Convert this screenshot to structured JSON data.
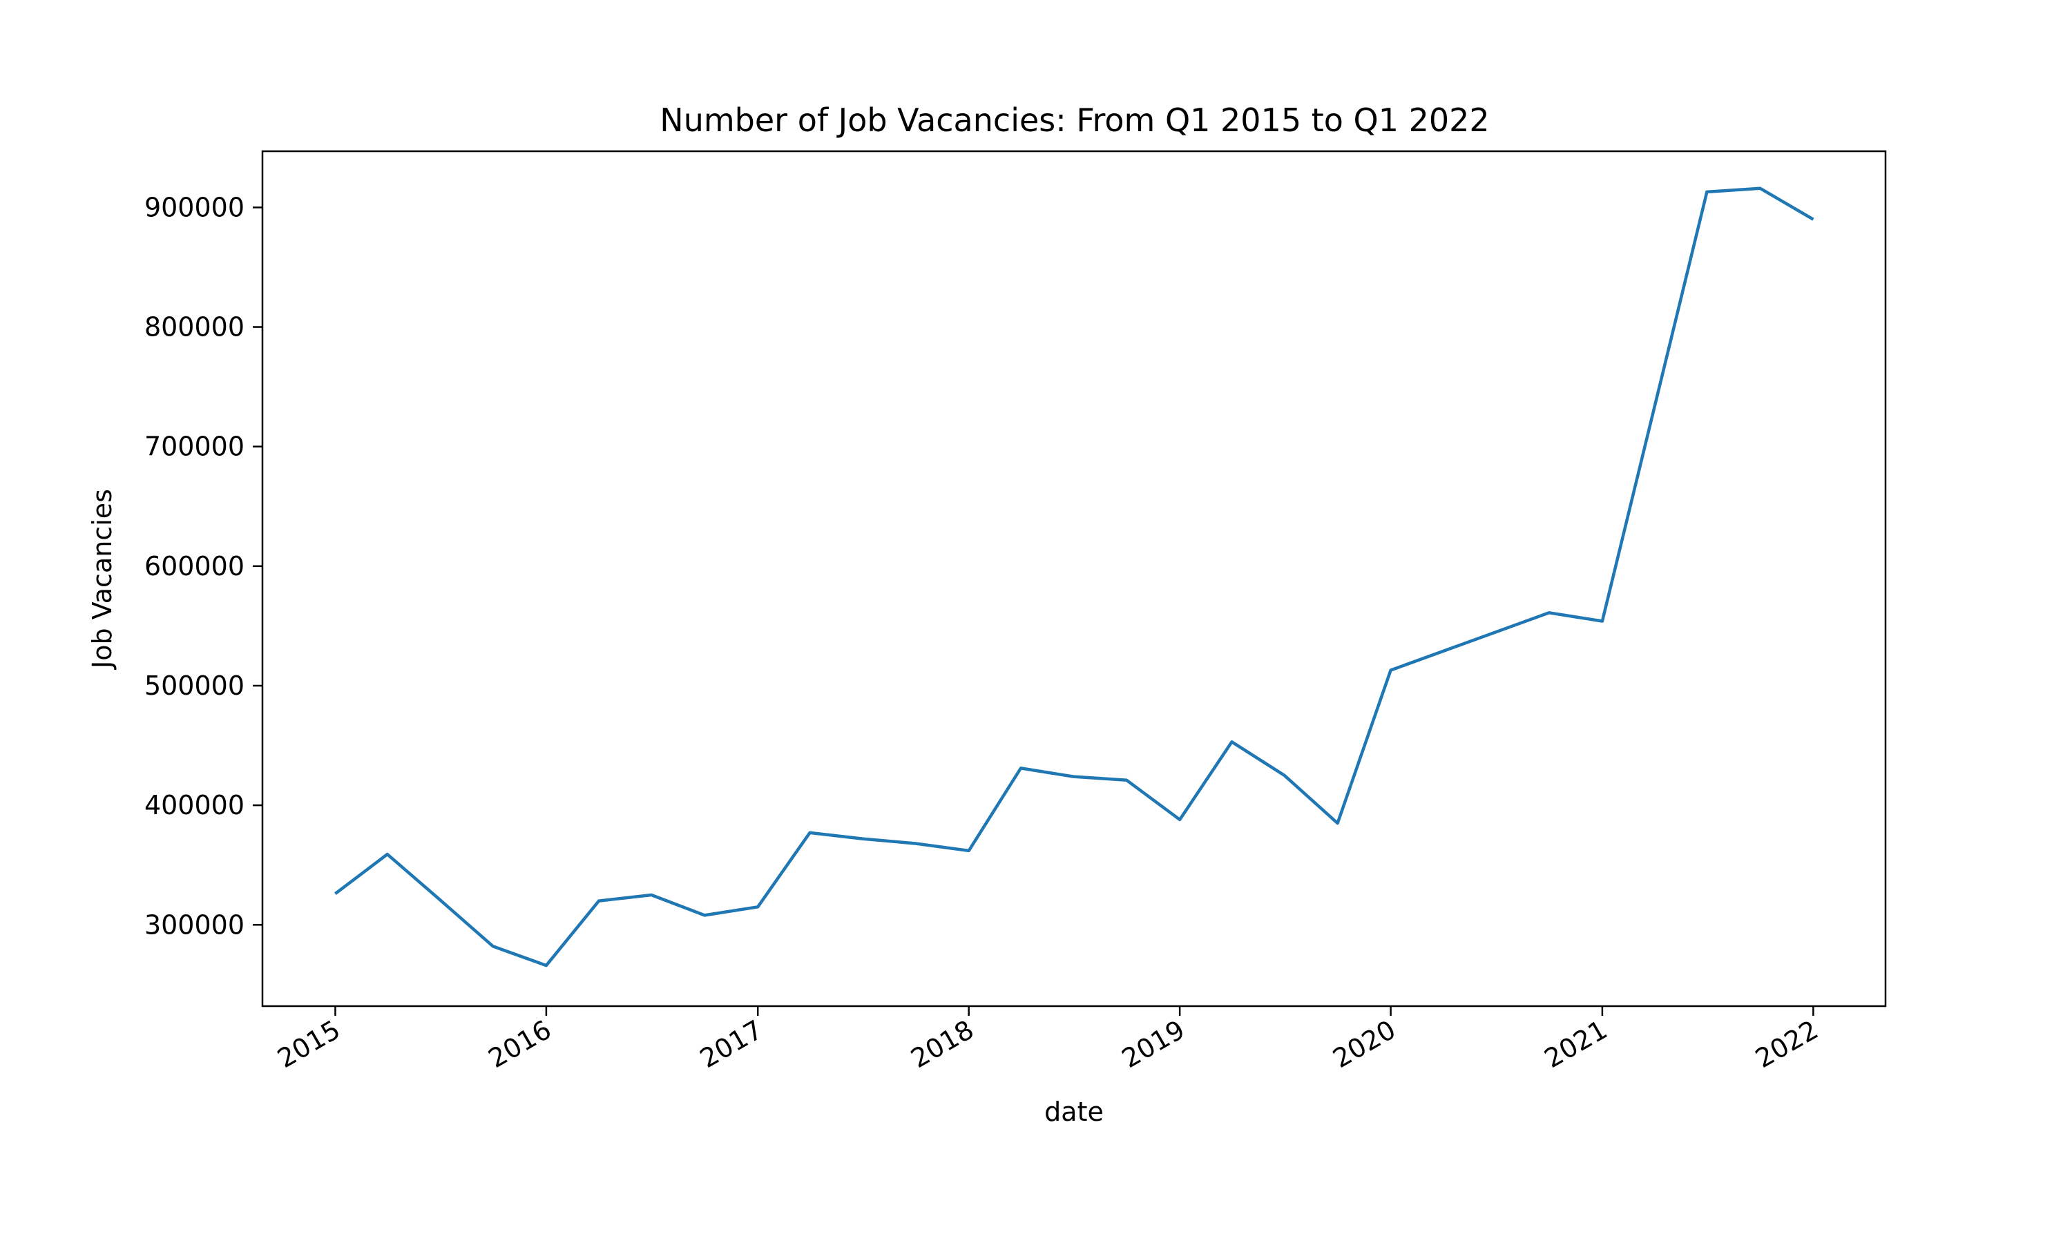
{
  "chart_data": {
    "type": "line",
    "title": "Number of Job Vacancies: From Q1 2015 to Q1 2022",
    "xlabel": "date",
    "ylabel": "Job Vacancies",
    "x_ticks": [
      "2015",
      "2016",
      "2017",
      "2018",
      "2019",
      "2020",
      "2021",
      "2022"
    ],
    "y_ticks": [
      "300000",
      "400000",
      "500000",
      "600000",
      "700000",
      "800000",
      "900000"
    ],
    "xlim": [
      "2014-08-28",
      "2022-05-06"
    ],
    "ylim": [
      232000,
      947000
    ],
    "grid": false,
    "line_color": "#1f77b4",
    "series": [
      {
        "x": [
          "2015-01-01",
          "2015-04-01",
          "2015-07-01",
          "2015-10-01",
          "2016-01-01",
          "2016-04-01",
          "2016-07-01",
          "2016-10-01",
          "2017-01-01",
          "2017-04-01",
          "2017-07-01",
          "2017-10-01",
          "2018-01-01",
          "2018-04-01",
          "2018-07-01",
          "2018-10-01",
          "2019-01-01",
          "2019-04-01",
          "2019-07-01",
          "2019-10-01",
          "2020-01-01",
          "2020-10-01",
          "2021-01-01",
          "2021-07-01",
          "2021-10-01",
          "2022-01-01"
        ],
        "values": [
          326000,
          359000,
          321000,
          282000,
          266000,
          320000,
          325000,
          308000,
          315000,
          377000,
          372000,
          368000,
          362000,
          431000,
          424000,
          421000,
          388000,
          453000,
          425000,
          385000,
          513000,
          561000,
          554000,
          913000,
          916000,
          890000
        ]
      }
    ]
  }
}
